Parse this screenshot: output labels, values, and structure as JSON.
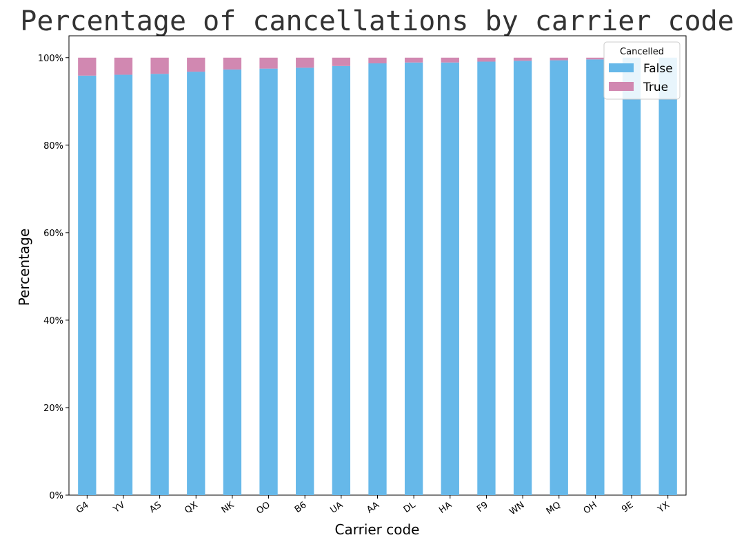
{
  "chart_data": {
    "type": "bar",
    "stacked": true,
    "title": "Percentage of cancellations by carrier code",
    "xlabel": "Carrier code",
    "ylabel": "Percentage",
    "ylim": [
      0,
      1.05
    ],
    "yticks": [
      "0%",
      "20%",
      "40%",
      "60%",
      "80%",
      "100%"
    ],
    "categories": [
      "G4",
      "YV",
      "AS",
      "QX",
      "NK",
      "OO",
      "B6",
      "UA",
      "AA",
      "DL",
      "HA",
      "F9",
      "WN",
      "MQ",
      "OH",
      "9E",
      "YX"
    ],
    "series": [
      {
        "name": "False",
        "color": "#66b8e9",
        "values": [
          0.959,
          0.961,
          0.963,
          0.968,
          0.973,
          0.975,
          0.977,
          0.981,
          0.987,
          0.989,
          0.989,
          0.991,
          0.993,
          0.994,
          0.996,
          1.0,
          1.0
        ]
      },
      {
        "name": "True",
        "color": "#d188b1",
        "values": [
          0.041,
          0.039,
          0.037,
          0.032,
          0.027,
          0.025,
          0.023,
          0.019,
          0.013,
          0.011,
          0.011,
          0.009,
          0.007,
          0.006,
          0.004,
          0.0,
          0.0
        ]
      }
    ],
    "legend": {
      "title": "Cancelled",
      "placement": "top-right"
    },
    "grid": false
  }
}
